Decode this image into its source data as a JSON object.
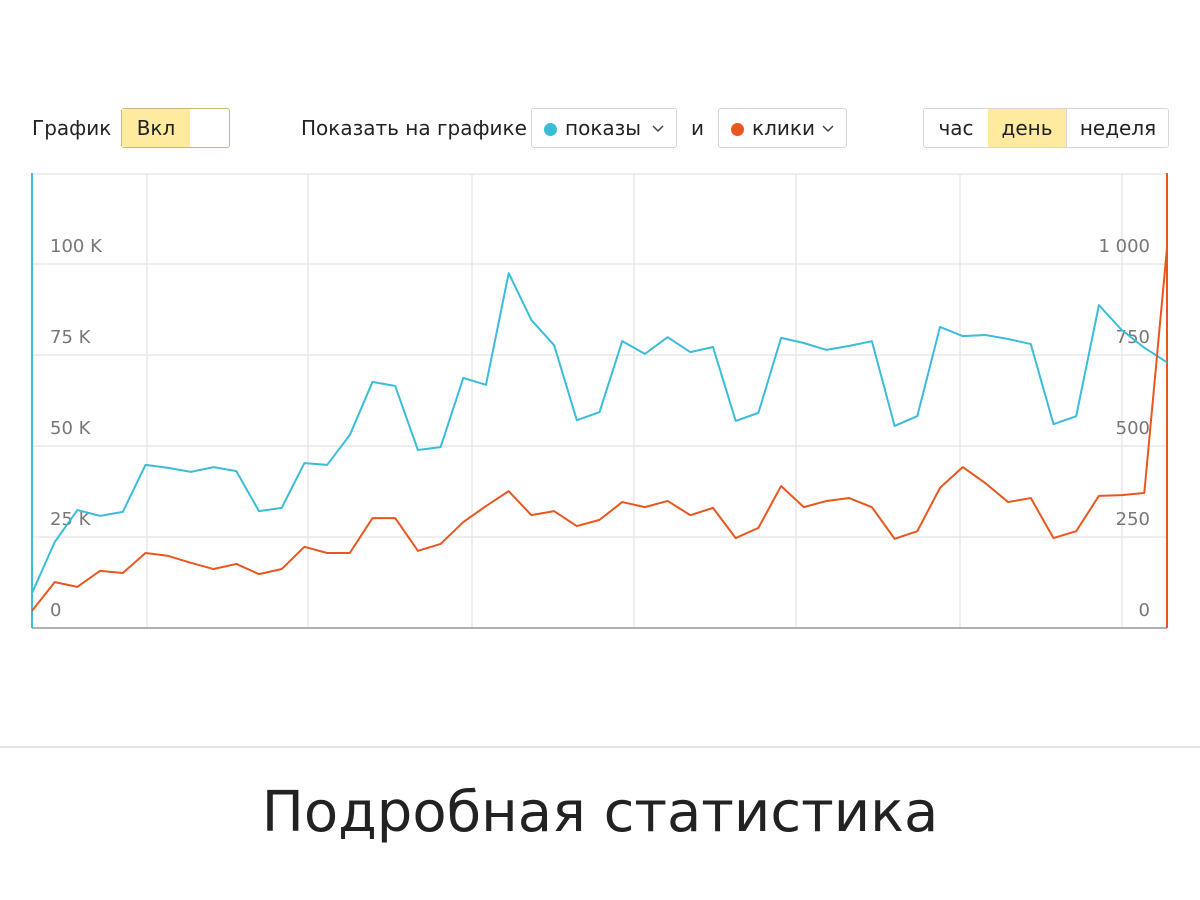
{
  "controls": {
    "graph_label": "График",
    "toggle": "Вкл",
    "show_label": "Показать на графике",
    "and": "и",
    "periods": [
      "час",
      "день",
      "неделя"
    ]
  },
  "chart_data": {
    "type": "line",
    "categories": [
      null,
      null,
      null,
      null,
      null,
      null,
      null,
      null,
      null,
      null,
      null,
      null,
      null,
      null,
      null,
      null,
      null,
      null,
      null,
      null,
      null,
      null,
      null,
      null,
      null,
      null,
      null,
      null,
      null,
      null,
      null,
      null,
      null,
      null,
      null,
      null,
      null,
      null,
      null,
      null,
      null,
      null,
      null,
      null,
      null,
      null,
      null,
      null,
      null,
      null,
      null
    ],
    "series": [
      {
        "name": "показы",
        "color": "#3bbcd9",
        "axis": "y",
        "values": [
          9600,
          23600,
          32400,
          30800,
          31900,
          44800,
          44000,
          42900,
          44200,
          43100,
          32100,
          33000,
          45300,
          44800,
          53000,
          67600,
          66500,
          48900,
          49700,
          68700,
          66800,
          97500,
          84600,
          77700,
          57100,
          59300,
          78800,
          75300,
          79900,
          75800,
          77200,
          56900,
          59100,
          79700,
          78300,
          76400,
          77500,
          78800,
          55500,
          58200,
          82700,
          80200,
          80500,
          79400,
          78000,
          56000,
          58200,
          88700,
          81900,
          77000,
          73000
        ]
      },
      {
        "name": "клики",
        "color": "#e8571e",
        "axis": "y2",
        "values": [
          47,
          126,
          113,
          157,
          151,
          206,
          198,
          179,
          162,
          176,
          148,
          162,
          223,
          206,
          206,
          302,
          302,
          212,
          231,
          291,
          335,
          376,
          310,
          321,
          280,
          297,
          346,
          332,
          349,
          310,
          330,
          247,
          275,
          390,
          332,
          349,
          357,
          332,
          245,
          266,
          385,
          442,
          398,
          346,
          357,
          247,
          266,
          363,
          365,
          371,
          1044
        ]
      }
    ],
    "ylim": [
      0,
      125000
    ],
    "yticks": [
      0,
      {
        "value": 25000,
        "label": "25 K"
      },
      {
        "value": 50000,
        "label": "50 K"
      },
      {
        "value": 75000,
        "label": "75 K"
      },
      {
        "value": 100000,
        "label": "100 K"
      }
    ],
    "y2lim": [
      0,
      1250
    ],
    "y2ticks": [
      0,
      250,
      500,
      750,
      {
        "value": 1000,
        "label": "1 000"
      }
    ],
    "grid": true
  },
  "footer": {
    "title": "Подробная статистика"
  }
}
